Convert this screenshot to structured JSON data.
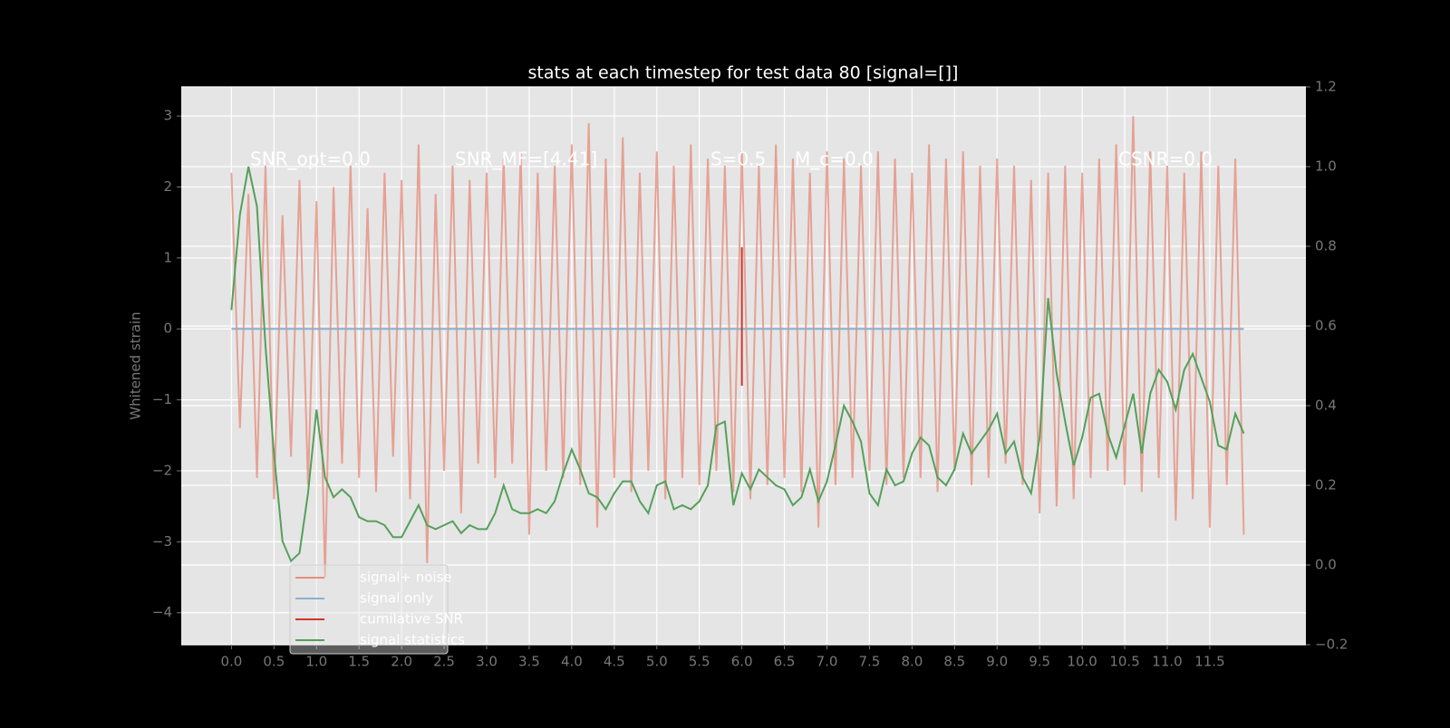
{
  "chart_data": {
    "type": "line",
    "title": "stats at each timestep for test data 80 [signal=[]]",
    "y_label": "Whitened strain",
    "annotations": [
      "SNR_opt=0.0",
      "SNR_MF=[4.41]",
      "S=0.5",
      "M_c=0.0",
      "CSNR=0.0"
    ],
    "x": [
      0.0,
      0.1,
      0.2,
      0.3,
      0.4,
      0.5,
      0.6,
      0.7,
      0.8,
      0.9,
      1.0,
      1.1,
      1.2,
      1.3,
      1.4,
      1.5,
      1.6,
      1.7,
      1.8,
      1.9,
      2.0,
      2.1,
      2.2,
      2.3,
      2.4,
      2.5,
      2.6,
      2.7,
      2.8,
      2.9,
      3.0,
      3.1,
      3.2,
      3.3,
      3.4,
      3.5,
      3.6,
      3.7,
      3.8,
      3.9,
      4.0,
      4.1,
      4.2,
      4.3,
      4.4,
      4.5,
      4.6,
      4.7,
      4.8,
      4.9,
      5.0,
      5.1,
      5.2,
      5.3,
      5.4,
      5.5,
      5.6,
      5.7,
      5.8,
      5.9,
      6.0,
      6.1,
      6.2,
      6.3,
      6.4,
      6.5,
      6.6,
      6.7,
      6.8,
      6.9,
      7.0,
      7.1,
      7.2,
      7.3,
      7.4,
      7.5,
      7.6,
      7.7,
      7.8,
      7.9,
      8.0,
      8.1,
      8.2,
      8.3,
      8.4,
      8.5,
      8.6,
      8.7,
      8.8,
      8.9,
      9.0,
      9.1,
      9.2,
      9.3,
      9.4,
      9.5,
      9.6,
      9.7,
      9.8,
      9.9,
      10.0,
      10.1,
      10.2,
      10.3,
      10.4,
      10.5,
      10.6,
      10.7,
      10.8,
      10.9,
      11.0,
      11.1,
      11.2,
      11.3,
      11.4,
      11.5,
      11.6,
      11.7,
      11.8,
      11.9
    ],
    "series": [
      {
        "name": "signal+ noise",
        "color": "#e5907f",
        "values": [
          2.2,
          -1.4,
          1.9,
          -2.1,
          2.3,
          -2.4,
          1.6,
          -1.8,
          2.1,
          -2.2,
          1.8,
          -3.5,
          2.0,
          -1.9,
          2.3,
          -2.1,
          1.7,
          -2.3,
          2.2,
          -1.8,
          2.1,
          -2.4,
          2.6,
          -3.3,
          1.9,
          -2.0,
          2.3,
          -2.6,
          2.1,
          -1.9,
          2.2,
          -2.1,
          2.4,
          -1.9,
          2.5,
          -2.9,
          2.2,
          -2.0,
          2.3,
          -2.1,
          2.6,
          -2.2,
          2.9,
          -2.8,
          2.4,
          -2.1,
          2.7,
          -2.3,
          2.2,
          -2.0,
          2.5,
          -2.4,
          2.3,
          -2.1,
          2.6,
          -2.2,
          2.4,
          -2.0,
          2.3,
          -2.3,
          2.5,
          -2.4,
          2.3,
          -2.2,
          2.6,
          -2.1,
          2.4,
          -2.3,
          2.2,
          -2.8,
          2.5,
          -2.2,
          2.4,
          -2.1,
          2.3,
          -2.0,
          2.5,
          -2.2,
          2.4,
          -2.1,
          2.2,
          -2.1,
          2.6,
          -2.3,
          2.4,
          -2.0,
          2.5,
          -2.2,
          2.3,
          -2.1,
          2.4,
          -1.9,
          2.3,
          -2.2,
          2.1,
          -2.6,
          2.2,
          -2.5,
          2.3,
          -2.4,
          2.2,
          -2.1,
          2.4,
          -2.0,
          2.6,
          -2.2,
          3.0,
          -2.3,
          2.5,
          -2.1,
          2.3,
          -2.7,
          2.2,
          -2.4,
          2.5,
          -2.8,
          2.3,
          -2.2,
          2.4,
          -2.9
        ]
      },
      {
        "name": "signal only",
        "color": "#8eaecc",
        "x": [
          0.0,
          11.9
        ],
        "values": [
          0,
          0
        ]
      },
      {
        "name": "cumilative SNR",
        "color": "#d0362b",
        "x": [
          6.0,
          6.0
        ],
        "values": [
          1.15,
          -0.8
        ]
      },
      {
        "name": "signal statistics",
        "color": "#55a05a",
        "axis": "y2",
        "values": [
          0.64,
          0.88,
          1.0,
          0.9,
          0.55,
          0.28,
          0.06,
          0.01,
          0.03,
          0.18,
          0.39,
          0.22,
          0.17,
          0.19,
          0.17,
          0.12,
          0.11,
          0.11,
          0.1,
          0.07,
          0.07,
          0.11,
          0.15,
          0.1,
          0.09,
          0.1,
          0.11,
          0.08,
          0.1,
          0.09,
          0.09,
          0.13,
          0.2,
          0.14,
          0.13,
          0.13,
          0.14,
          0.13,
          0.16,
          0.23,
          0.29,
          0.24,
          0.18,
          0.17,
          0.14,
          0.18,
          0.21,
          0.21,
          0.16,
          0.13,
          0.2,
          0.21,
          0.14,
          0.15,
          0.14,
          0.16,
          0.2,
          0.35,
          0.36,
          0.15,
          0.23,
          0.19,
          0.24,
          0.22,
          0.2,
          0.19,
          0.15,
          0.17,
          0.24,
          0.16,
          0.21,
          0.3,
          0.4,
          0.36,
          0.31,
          0.18,
          0.15,
          0.24,
          0.2,
          0.21,
          0.28,
          0.32,
          0.3,
          0.22,
          0.2,
          0.24,
          0.33,
          0.28,
          0.31,
          0.34,
          0.38,
          0.28,
          0.31,
          0.22,
          0.18,
          0.32,
          0.67,
          0.48,
          0.36,
          0.25,
          0.32,
          0.42,
          0.43,
          0.33,
          0.27,
          0.35,
          0.43,
          0.28,
          0.43,
          0.49,
          0.46,
          0.39,
          0.49,
          0.53,
          0.47,
          0.41,
          0.3,
          0.29,
          0.38,
          0.33
        ]
      }
    ],
    "xlim": [
      -0.59,
      12.63
    ],
    "xticks": [
      {
        "value": 0,
        "label": "0.0"
      },
      0.5,
      {
        "value": 1,
        "label": "1.0"
      },
      1.5,
      {
        "value": 2,
        "label": "2.0"
      },
      2.5,
      {
        "value": 3,
        "label": "3.0"
      },
      3.5,
      {
        "value": 4,
        "label": "4.0"
      },
      4.5,
      {
        "value": 5,
        "label": "5.0"
      },
      5.5,
      {
        "value": 6,
        "label": "6.0"
      },
      6.5,
      {
        "value": 7,
        "label": "7.0"
      },
      7.5,
      {
        "value": 8,
        "label": "8.0"
      },
      8.5,
      {
        "value": 9,
        "label": "9.0"
      },
      9.5,
      {
        "value": 10,
        "label": "10.0"
      },
      10.5,
      {
        "value": 11,
        "label": "11.0"
      },
      11.5
    ],
    "ylim": [
      -4.45,
      3.41
    ],
    "yticks": [
      {
        "value": -4,
        "label": "−4"
      },
      {
        "value": -3,
        "label": "−3"
      },
      {
        "value": -2,
        "label": "−2"
      },
      {
        "value": -1,
        "label": "−1"
      },
      0,
      1,
      2,
      3
    ],
    "y2lim": [
      -0.2,
      1.2
    ],
    "y2ticks": [
      {
        "value": -0.2,
        "label": "−0.2"
      },
      {
        "value": 0,
        "label": "0.0"
      },
      0.2,
      0.4,
      0.6,
      0.8,
      {
        "value": 1,
        "label": "1.0"
      },
      1.2
    ],
    "grid": true,
    "legend": "lower left"
  }
}
